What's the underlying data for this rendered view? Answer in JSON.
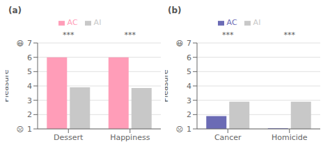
{
  "chart_data": [
    {
      "type": "bar",
      "title": "(a)",
      "ylabel": "Pleasure",
      "categories": [
        "Dessert",
        "Happiness"
      ],
      "series": [
        {
          "name": "AC",
          "color": "#FF9DB8",
          "values": [
            6.0,
            6.0
          ]
        },
        {
          "name": "AI",
          "color": "#C8C8C8",
          "values": [
            3.9,
            3.85
          ]
        }
      ],
      "ylim": [
        1,
        7
      ],
      "yticks": [
        1,
        2,
        3,
        4,
        5,
        6,
        7
      ],
      "grid": true,
      "legend": "top",
      "annotations": [
        {
          "text": "***",
          "category": "Dessert"
        },
        {
          "text": "***",
          "category": "Happiness"
        },
        {
          "text": "😃",
          "y": 7
        },
        {
          "text": "☹",
          "y": 1
        }
      ]
    },
    {
      "type": "bar",
      "title": "(b)",
      "ylabel": "Pleasure",
      "categories": [
        "Cancer",
        "Homicide"
      ],
      "series": [
        {
          "name": "AC",
          "color": "#6B6BB5",
          "values": [
            1.9,
            1.05
          ]
        },
        {
          "name": "AI",
          "color": "#C8C8C8",
          "values": [
            2.9,
            2.9
          ]
        }
      ],
      "ylim": [
        1,
        7
      ],
      "yticks": [
        1,
        2,
        3,
        4,
        5,
        6,
        7
      ],
      "grid": true,
      "legend": "top",
      "annotations": [
        {
          "text": "***",
          "category": "Cancer"
        },
        {
          "text": "***",
          "category": "Homicide"
        },
        {
          "text": "😃",
          "y": 7
        },
        {
          "text": "☹",
          "y": 1
        }
      ]
    }
  ]
}
